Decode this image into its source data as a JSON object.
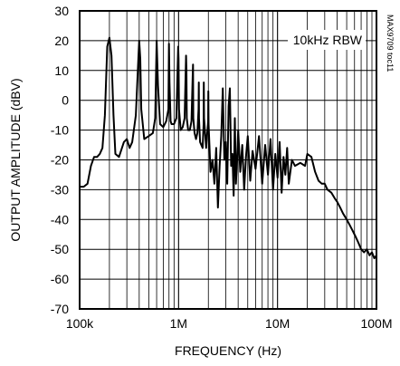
{
  "chart_data": {
    "type": "line",
    "title": "",
    "xlabel": "FREQUENCY (Hz)",
    "ylabel": "OUTPUT AMPLITUDE (dBV)",
    "x_scale": "log",
    "xlim": [
      100000,
      100000000
    ],
    "ylim": [
      -70,
      30
    ],
    "grid": true,
    "x_ticks": [
      100000,
      1000000,
      10000000,
      100000000
    ],
    "x_tick_labels": [
      "100k",
      "1M",
      "10M",
      "100M"
    ],
    "y_ticks": [
      30,
      20,
      10,
      0,
      -10,
      -20,
      -30,
      -40,
      -50,
      -60,
      -70
    ],
    "y_tick_labels": [
      "30",
      "20",
      "10",
      "0",
      "-10",
      "-20",
      "-30",
      "-40",
      "-50",
      "-60",
      "-70"
    ],
    "annotations": [
      "10kHz RBW"
    ],
    "figure_id": "MAX9709 toc11",
    "series": [
      {
        "color": "#000000",
        "x": [
          100000,
          110000,
          120000,
          130000,
          140000,
          150000,
          160000,
          170000,
          180000,
          190000,
          200000,
          210000,
          220000,
          230000,
          250000,
          280000,
          300000,
          320000,
          340000,
          370000,
          390000,
          400000,
          410000,
          420000,
          450000,
          500000,
          550000,
          580000,
          600000,
          620000,
          650000,
          700000,
          750000,
          790000,
          800000,
          810000,
          830000,
          850000,
          900000,
          950000,
          990000,
          1000000,
          1010000,
          1050000,
          1100000,
          1150000,
          1190000,
          1200000,
          1210000,
          1250000,
          1300000,
          1350000,
          1390000,
          1400000,
          1410000,
          1450000,
          1500000,
          1550000,
          1590000,
          1600000,
          1610000,
          1650000,
          1750000,
          1790000,
          1800000,
          1810000,
          1900000,
          1990000,
          2000000,
          2010000,
          2100000,
          2200000,
          2300000,
          2400000,
          2500000,
          2600000,
          2700000,
          2800000,
          2900000,
          3000000,
          3100000,
          3200000,
          3300000,
          3400000,
          3500000,
          3600000,
          3700000,
          3800000,
          3900000,
          4000000,
          4200000,
          4400000,
          4600000,
          4800000,
          5000000,
          5300000,
          5600000,
          6000000,
          6500000,
          7000000,
          7500000,
          8000000,
          8500000,
          9000000,
          9500000,
          10000000,
          10500000,
          11000000,
          11500000,
          12000000,
          12500000,
          13000000,
          14000000,
          15000000,
          17000000,
          19000000,
          20000000,
          22000000,
          24000000,
          26000000,
          28000000,
          30000000,
          32000000,
          35000000,
          38000000,
          40000000,
          43000000,
          46000000,
          50000000,
          54000000,
          58000000,
          62000000,
          66000000,
          70000000,
          75000000,
          80000000,
          85000000,
          90000000,
          95000000,
          100000000
        ],
        "y": [
          -29,
          -29,
          -28,
          -22,
          -19,
          -19,
          -18,
          -16,
          -5,
          18,
          21,
          15,
          -5,
          -18,
          -19,
          -14,
          -13,
          -16,
          -14,
          -5,
          12,
          20,
          14,
          -3,
          -13,
          -12,
          -11,
          -6,
          20,
          5,
          -8,
          -9,
          -7,
          -3,
          19,
          6,
          -7,
          -8,
          -8,
          -6,
          18,
          14,
          -3,
          -10,
          -9,
          -6,
          15,
          10,
          -6,
          -10,
          -10,
          -7,
          9,
          12,
          -6,
          -11,
          -13,
          -11,
          -3,
          6,
          -6,
          -14,
          -16,
          -8,
          6,
          -6,
          -16,
          -7,
          3,
          -8,
          -24,
          -20,
          -28,
          -16,
          -36,
          -22,
          -12,
          4,
          -20,
          -14,
          -28,
          -2,
          4,
          -22,
          -18,
          -32,
          -6,
          -28,
          -20,
          -10,
          -24,
          -15,
          -30,
          -19,
          -12,
          -27,
          -17,
          -23,
          -12,
          -28,
          -15,
          -25,
          -13,
          -30,
          -18,
          -26,
          -14,
          -31,
          -19,
          -25,
          -16,
          -28,
          -20,
          -22,
          -21,
          -22,
          -18,
          -19,
          -24,
          -27,
          -28,
          -28,
          -30,
          -31,
          -33,
          -34,
          -36,
          -38,
          -40,
          -42,
          -44,
          -46,
          -48,
          -50,
          -51,
          -50,
          -52,
          -51,
          -53,
          -52
        ]
      }
    ]
  }
}
